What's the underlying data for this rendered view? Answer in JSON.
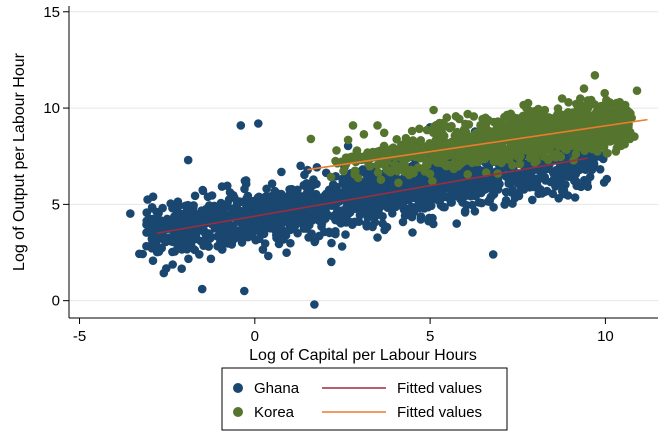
{
  "chart_data": {
    "type": "scatter",
    "title": "",
    "xlabel": "Log of Capital per Labour Hours",
    "ylabel": "Log of Output per Labour Hour",
    "xlim": [
      -5.3,
      11.5
    ],
    "ylim": [
      -0.9,
      15.3
    ],
    "xticks": [
      -5,
      0,
      5,
      10
    ],
    "xtick_labels": [
      "-5",
      "0",
      "5",
      "10"
    ],
    "yticks": [
      0,
      5,
      10,
      15
    ],
    "ytick_labels": [
      "0",
      "5",
      "10",
      "15"
    ],
    "grid": "horizontal",
    "legend_position": "bottom",
    "series": [
      {
        "name": "Ghana",
        "kind": "scatter",
        "color": "#1a476f",
        "note": "dense cloud roughly following fitted line, x from about -3 to 9.5, y from about -0.3 to 9.2",
        "center_line": {
          "x0": -2.8,
          "y0": 3.5,
          "x1": 9.5,
          "y1": 7.4
        },
        "spread": 0.75,
        "outliers": [
          [
            -0.4,
            9.1
          ],
          [
            0.1,
            9.2
          ],
          [
            1.7,
            -0.2
          ],
          [
            -0.3,
            0.5
          ],
          [
            -1.5,
            0.6
          ],
          [
            -2.9,
            5.4
          ],
          [
            6.8,
            2.4
          ],
          [
            -1.9,
            7.3
          ],
          [
            5.0,
            9.0
          ]
        ]
      },
      {
        "name": "Korea",
        "kind": "scatter",
        "color": "#55752f",
        "note": "cloud from about x 1.5 to 11, y 6.5 to 11.7",
        "center_line": {
          "x0": 1.5,
          "y0": 6.8,
          "x1": 10.5,
          "y1": 9.3
        },
        "spread": 0.6,
        "outliers": [
          [
            9.7,
            11.7
          ],
          [
            5.1,
            9.9
          ],
          [
            3.5,
            9.1
          ],
          [
            2.8,
            9.1
          ],
          [
            1.6,
            8.4
          ],
          [
            10.9,
            10.9
          ]
        ]
      },
      {
        "name": "Fitted values",
        "kind": "line",
        "color": "#9e2c3f",
        "x": [
          -2.8,
          9.5
        ],
        "y": [
          3.5,
          7.4
        ]
      },
      {
        "name": "Fitted values",
        "kind": "line",
        "color": "#ec7c2c",
        "x": [
          1.5,
          11.2
        ],
        "y": [
          6.8,
          9.4
        ]
      }
    ],
    "legend": [
      {
        "label": "Ghana",
        "marker": "dot",
        "color": "#1a476f"
      },
      {
        "label": "Fitted values",
        "marker": "line",
        "color": "#9e2c3f"
      },
      {
        "label": "Korea",
        "marker": "dot",
        "color": "#55752f"
      },
      {
        "label": "Fitted values",
        "marker": "line",
        "color": "#ec7c2c"
      }
    ]
  }
}
